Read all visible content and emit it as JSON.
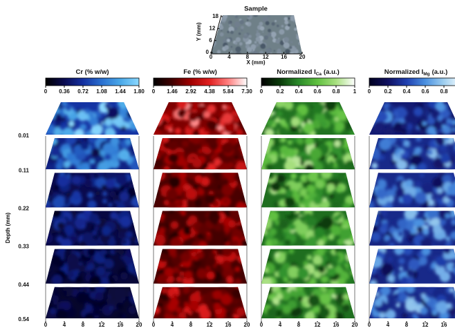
{
  "sample": {
    "title": "Sample",
    "x_label": "X (mm)",
    "y_label": "Y (mm)",
    "xticks": [
      0,
      4,
      8,
      12,
      16,
      20
    ],
    "yticks": [
      0,
      6,
      12,
      18
    ]
  },
  "panels": [
    {
      "title": "Cr (% w/w)",
      "range": [
        0,
        1.8
      ],
      "colorbar_ticks": [
        0,
        0.36,
        0.72,
        1.08,
        1.44,
        {
          "value": 1.8,
          "label": "1.80"
        }
      ],
      "colormap": [
        "#000000",
        "#0a0a50",
        "#1430a0",
        "#2a70d0",
        "#4aa8e8",
        "#8ad8ff"
      ]
    },
    {
      "title": "Fe (% w/w)",
      "range": [
        0,
        7.3
      ],
      "colorbar_ticks": [
        0,
        1.46,
        2.92,
        4.38,
        5.84,
        {
          "value": 7.3,
          "label": "7.30"
        }
      ],
      "colormap": [
        "#000000",
        "#400000",
        "#a00000",
        "#e02020",
        "#ff8080",
        "#ffffff"
      ]
    },
    {
      "title": "Normalized I",
      "subscript": "Ca",
      "unit": "(a.u.)",
      "range": [
        0,
        1
      ],
      "colorbar_ticks": [
        0,
        0.2,
        0.4,
        0.6,
        0.8,
        1
      ],
      "colormap": [
        "#000000",
        "#0a3a0a",
        "#2a8a2a",
        "#60c040",
        "#a8e080",
        "#ffffff"
      ]
    },
    {
      "title": "Normalized I",
      "subscript": "Mg",
      "unit": "(a.u.)",
      "range": [
        0,
        1
      ],
      "colorbar_ticks": [
        0,
        0.2,
        0.4,
        0.6,
        0.8
      ],
      "colormap": [
        "#000020",
        "#101060",
        "#2040b0",
        "#4a90e0",
        "#a0d0f0",
        "#ffffff"
      ]
    }
  ],
  "depth": {
    "label": "Depth (mm)",
    "ticks": [
      0.01,
      0.11,
      0.22,
      0.33,
      0.44,
      0.54
    ]
  },
  "map_xticks": [
    0,
    4,
    8,
    12,
    16,
    20
  ]
}
